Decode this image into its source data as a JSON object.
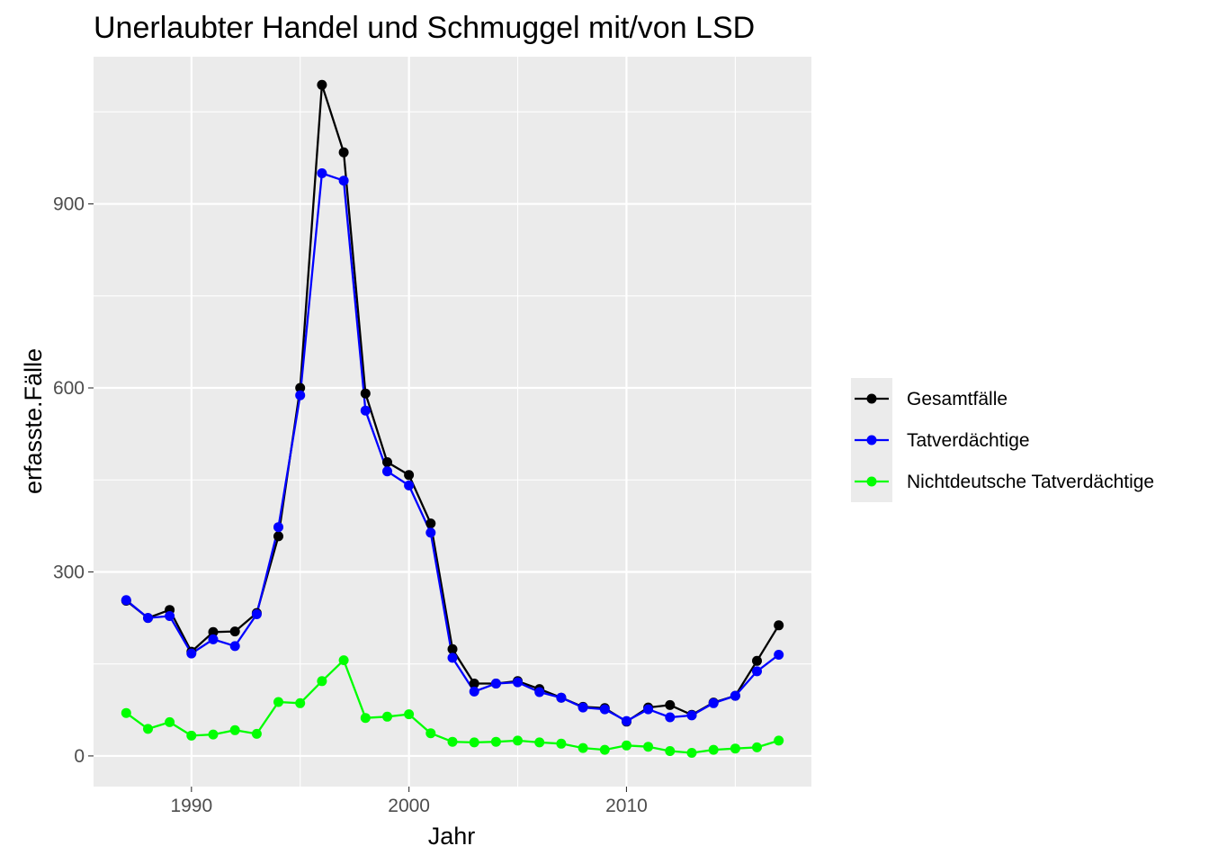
{
  "chart_data": {
    "type": "line",
    "title": "Unerlaubter Handel und Schmuggel mit/von LSD",
    "xlabel": "Jahr",
    "ylabel": "erfasste.Fälle",
    "xlim": [
      1985.5,
      2018.5
    ],
    "ylim": [
      -50,
      1140
    ],
    "x_ticks": [
      1990,
      2000,
      2010
    ],
    "y_ticks": [
      0,
      300,
      600,
      900
    ],
    "grid": true,
    "legend_position": "right",
    "x": [
      1987,
      1988,
      1989,
      1990,
      1991,
      1992,
      1993,
      1994,
      1995,
      1996,
      1997,
      1998,
      1999,
      2000,
      2001,
      2002,
      2003,
      2004,
      2005,
      2006,
      2007,
      2008,
      2009,
      2010,
      2011,
      2012,
      2013,
      2014,
      2015,
      2016,
      2017
    ],
    "series": [
      {
        "name": "Gesamtfälle",
        "color": "#000000",
        "values": [
          253,
          225,
          238,
          170,
          202,
          203,
          233,
          358,
          600,
          1094,
          984,
          591,
          479,
          458,
          379,
          174,
          118,
          118,
          122,
          109,
          95,
          80,
          78,
          56,
          79,
          83,
          67,
          87,
          98,
          155,
          213
        ]
      },
      {
        "name": "Tatverdächtige",
        "color": "#0000ff",
        "values": [
          254,
          225,
          228,
          167,
          190,
          179,
          231,
          373,
          588,
          950,
          938,
          563,
          464,
          441,
          364,
          160,
          105,
          118,
          120,
          104,
          95,
          79,
          76,
          57,
          76,
          63,
          66,
          86,
          98,
          138,
          165
        ]
      },
      {
        "name": "Nichtdeutsche Tatverdächtige",
        "color": "#00ff00",
        "values": [
          70,
          44,
          55,
          33,
          35,
          42,
          36,
          88,
          86,
          122,
          156,
          62,
          64,
          68,
          37,
          23,
          22,
          23,
          25,
          22,
          20,
          13,
          10,
          17,
          15,
          8,
          5,
          10,
          12,
          14,
          25
        ]
      }
    ]
  }
}
